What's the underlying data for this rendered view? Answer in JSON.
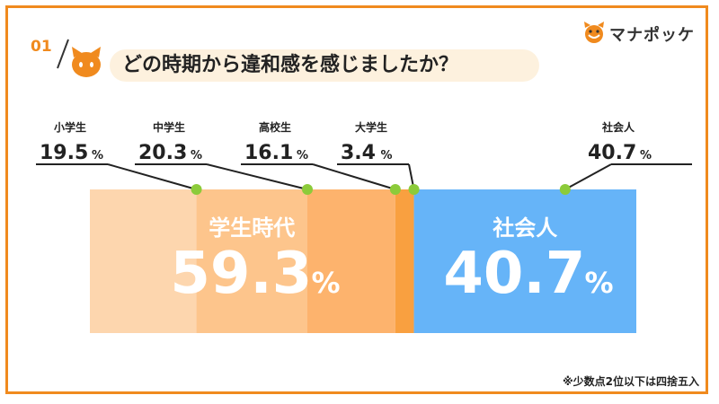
{
  "question": {
    "number": "01",
    "title": "どの時期から違和感を感じましたか？"
  },
  "brand": {
    "name": "マナポッケ",
    "accent_color": "#f08a1e",
    "icon": "cat-face-icon"
  },
  "footnote": "※少数点2位以下は四捨五入",
  "colors": {
    "student_1": "#fdd6ae",
    "student_2": "#fdc58c",
    "student_3": "#fdb36d",
    "student_4": "#f9a040",
    "adult": "#66b4f8",
    "leader_dot": "#8ccb3a"
  },
  "chart_data": {
    "type": "bar",
    "orientation": "horizontal-stacked",
    "unit": "%",
    "categories": [
      "小学生",
      "中学生",
      "高校生",
      "大学生",
      "社会人"
    ],
    "values": [
      19.5,
      20.3,
      16.1,
      3.4,
      40.7
    ],
    "groups": [
      {
        "name": "学生時代",
        "value": 59.3,
        "members": [
          "小学生",
          "中学生",
          "高校生",
          "大学生"
        ]
      },
      {
        "name": "社会人",
        "value": 40.7,
        "members": [
          "社会人"
        ]
      }
    ]
  }
}
